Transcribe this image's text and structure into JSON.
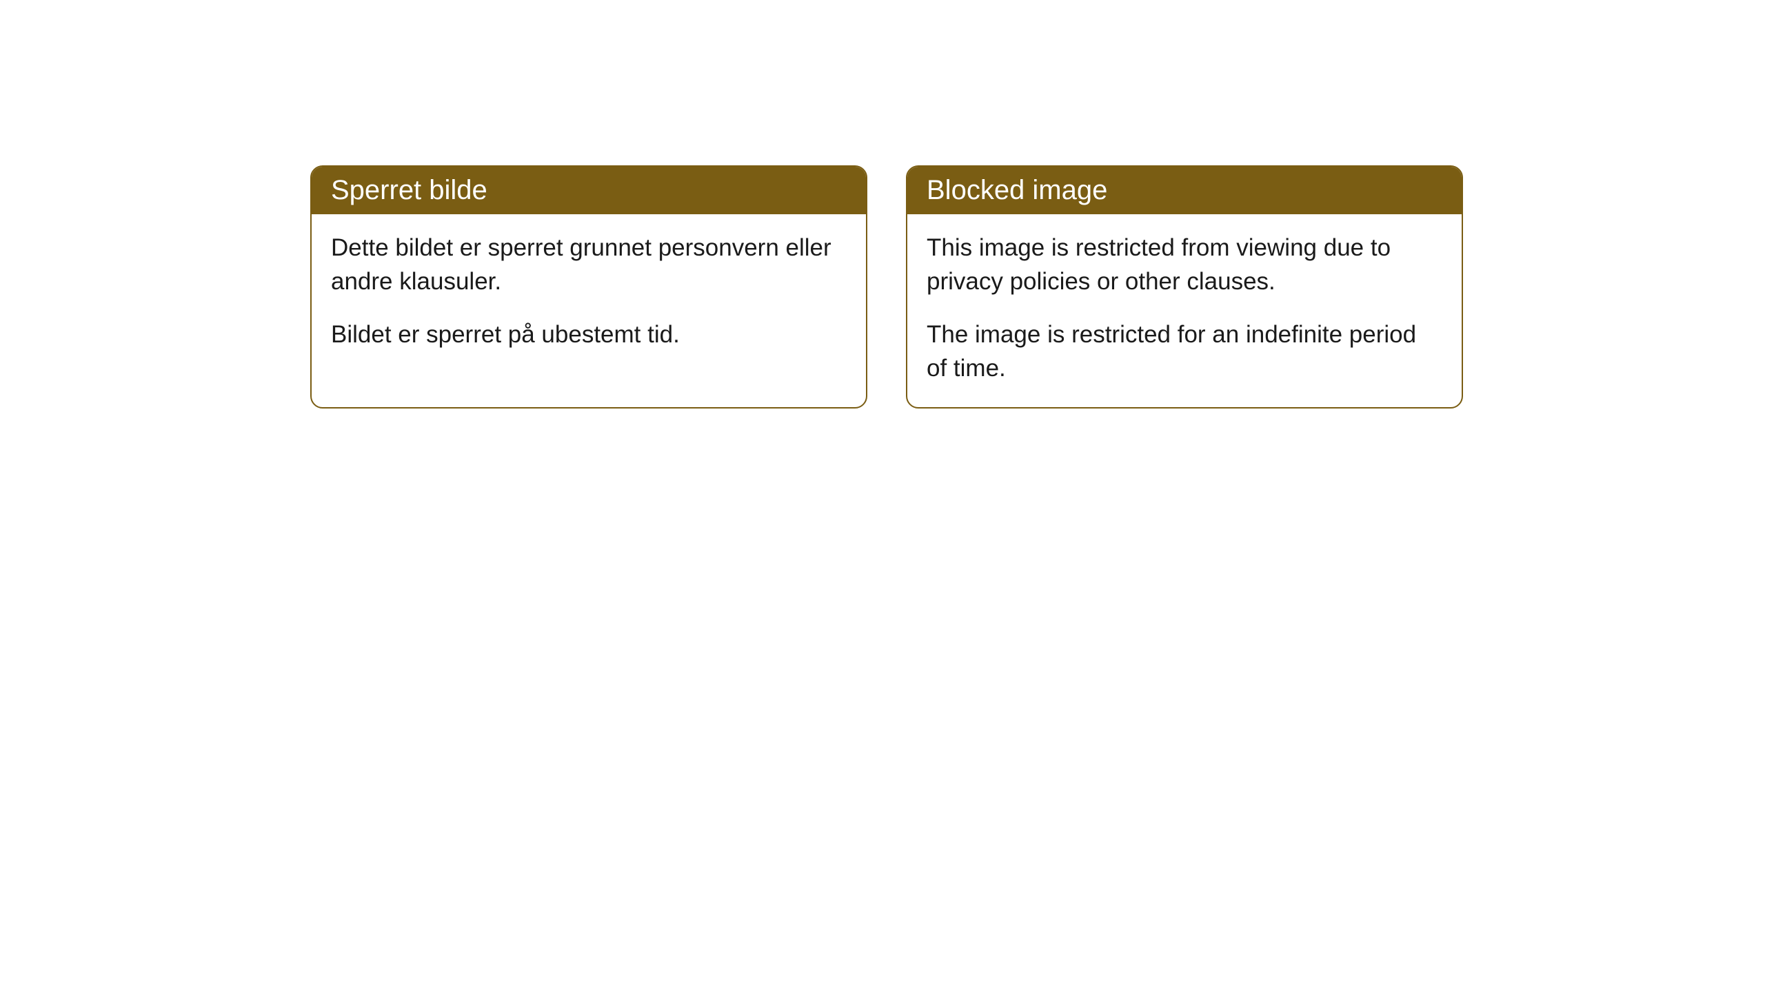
{
  "cards": [
    {
      "title": "Sperret bilde",
      "paragraph1": "Dette bildet er sperret grunnet personvern eller andre klausuler.",
      "paragraph2": "Bildet er sperret på ubestemt tid."
    },
    {
      "title": "Blocked image",
      "paragraph1": "This image is restricted from viewing due to privacy policies or other clauses.",
      "paragraph2": "The image is restricted for an indefinite period of time."
    }
  ],
  "styling": {
    "header_background_color": "#7a5d13",
    "header_text_color": "#ffffff",
    "border_color": "#7a5d13",
    "body_background_color": "#ffffff",
    "body_text_color": "#1a1a1a",
    "border_radius": 18,
    "title_fontsize": 40,
    "body_fontsize": 35
  }
}
